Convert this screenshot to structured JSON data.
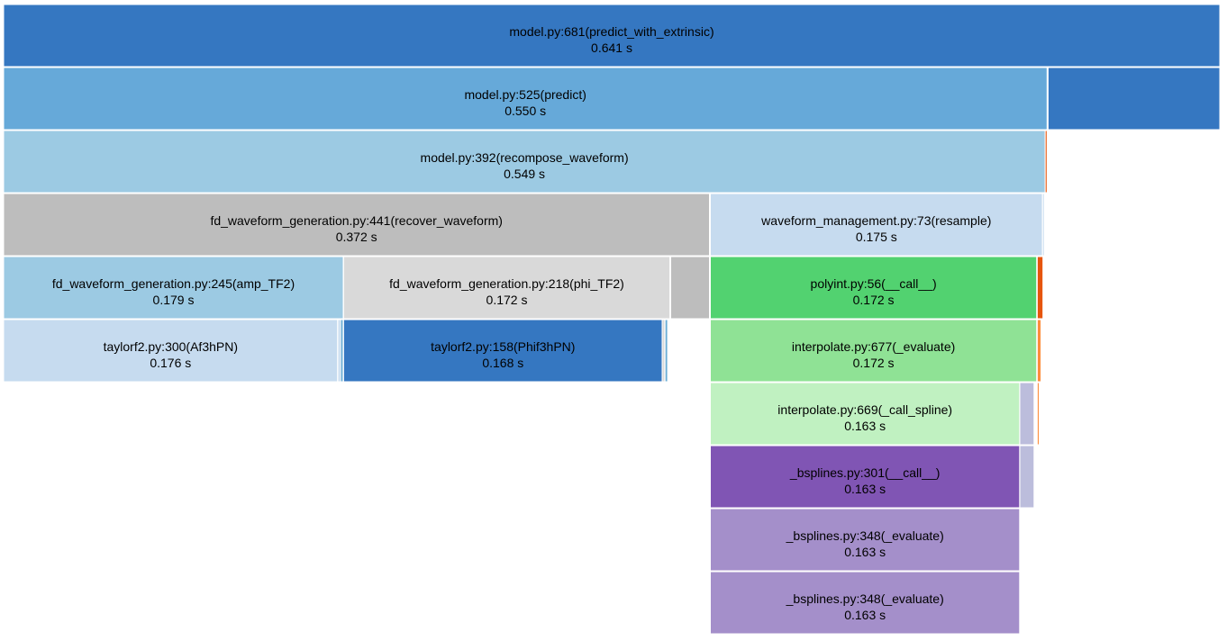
{
  "chart_data": {
    "type": "icicle",
    "time_unit": "s",
    "frames": [
      {
        "id": "predict_with_extrinsic",
        "label": "model.py:681(predict_with_extrinsic)",
        "time": "0.641 s",
        "seconds": 0.641,
        "depth": 0,
        "offset": 0.0,
        "color": "#3577c1"
      },
      {
        "id": "predict",
        "label": "model.py:525(predict)",
        "time": "0.550 s",
        "seconds": 0.55,
        "depth": 1,
        "offset": 0.0,
        "color": "#66a9d9"
      },
      {
        "id": "predict_sibling",
        "label": "",
        "time": "",
        "seconds": 0.0905,
        "depth": 1,
        "offset": 0.5505,
        "color": "#3577c1"
      },
      {
        "id": "recompose_waveform",
        "label": "model.py:392(recompose_waveform)",
        "time": "0.549 s",
        "seconds": 0.549,
        "depth": 2,
        "offset": 0.0,
        "color": "#9ccae3"
      },
      {
        "id": "recompose_sliver",
        "label": "",
        "time": "",
        "seconds": 0.001,
        "depth": 2,
        "offset": 0.549,
        "color": "#e6550d"
      },
      {
        "id": "recover_waveform",
        "label": "fd_waveform_generation.py:441(recover_waveform)",
        "time": "0.372 s",
        "seconds": 0.372,
        "depth": 3,
        "offset": 0.0,
        "color": "#bdbdbd"
      },
      {
        "id": "resample",
        "label": "waveform_management.py:73(resample)",
        "time": "0.175 s",
        "seconds": 0.175,
        "depth": 3,
        "offset": 0.3725,
        "color": "#c6dbef"
      },
      {
        "id": "resample_sliver",
        "label": "",
        "time": "",
        "seconds": 0.0009,
        "depth": 3,
        "offset": 0.5476,
        "color": "#c6dbef"
      },
      {
        "id": "amp_TF2",
        "label": "fd_waveform_generation.py:245(amp_TF2)",
        "time": "0.179 s",
        "seconds": 0.179,
        "depth": 4,
        "offset": 0.0,
        "color": "#9ccae3"
      },
      {
        "id": "phi_TF2",
        "label": "fd_waveform_generation.py:218(phi_TF2)",
        "time": "0.172 s",
        "seconds": 0.172,
        "depth": 4,
        "offset": 0.1792,
        "color": "#d9d9d9"
      },
      {
        "id": "recover_rest",
        "label": "",
        "time": "",
        "seconds": 0.0204,
        "depth": 4,
        "offset": 0.3516,
        "color": "#bdbdbd"
      },
      {
        "id": "polyint_call",
        "label": "polyint.py:56(__call__)",
        "time": "0.172 s",
        "seconds": 0.172,
        "depth": 4,
        "offset": 0.3725,
        "color": "#52d270"
      },
      {
        "id": "polyint_sliver",
        "label": "",
        "time": "",
        "seconds": 0.003,
        "depth": 4,
        "offset": 0.5448,
        "color": "#e6550d"
      },
      {
        "id": "Af3hPN",
        "label": "taylorf2.py:300(Af3hPN)",
        "time": "0.176 s",
        "seconds": 0.176,
        "depth": 5,
        "offset": 0.0,
        "color": "#c6dbef"
      },
      {
        "id": "amp_sliver_a",
        "label": "",
        "time": "",
        "seconds": 0.0014,
        "depth": 5,
        "offset": 0.1762,
        "color": "#c6dbef"
      },
      {
        "id": "amp_sliver_b",
        "label": "",
        "time": "",
        "seconds": 0.0014,
        "depth": 5,
        "offset": 0.1776,
        "color": "#6baed6"
      },
      {
        "id": "Phif3hPN",
        "label": "taylorf2.py:158(Phif3hPN)",
        "time": "0.168 s",
        "seconds": 0.168,
        "depth": 5,
        "offset": 0.1792,
        "color": "#3577c1"
      },
      {
        "id": "phi_sliver_a",
        "label": "",
        "time": "",
        "seconds": 0.0014,
        "depth": 5,
        "offset": 0.3471,
        "color": "#d9d9d9"
      },
      {
        "id": "phi_sliver_b",
        "label": "",
        "time": "",
        "seconds": 0.0014,
        "depth": 5,
        "offset": 0.3486,
        "color": "#6baed6"
      },
      {
        "id": "interpolate_evaluate",
        "label": "interpolate.py:677(_evaluate)",
        "time": "0.172 s",
        "seconds": 0.172,
        "depth": 5,
        "offset": 0.3725,
        "color": "#8fe295"
      },
      {
        "id": "interp_sliver",
        "label": "",
        "time": "",
        "seconds": 0.002,
        "depth": 5,
        "offset": 0.5448,
        "color": "#fd8d3c"
      },
      {
        "id": "call_spline",
        "label": "interpolate.py:669(_call_spline)",
        "time": "0.163 s",
        "seconds": 0.163,
        "depth": 6,
        "offset": 0.3725,
        "color": "#c0f1c1"
      },
      {
        "id": "spline_sliver_a",
        "label": "",
        "time": "",
        "seconds": 0.0075,
        "depth": 6,
        "offset": 0.5356,
        "color": "#bcbddc"
      },
      {
        "id": "spline_sliver_b",
        "label": "",
        "time": "",
        "seconds": 0.001,
        "depth": 6,
        "offset": 0.5448,
        "color": "#fd8d3c"
      },
      {
        "id": "bsplines_call",
        "label": "_bsplines.py:301(__call__)",
        "time": "0.163 s",
        "seconds": 0.163,
        "depth": 7,
        "offset": 0.3725,
        "color": "#8055b4"
      },
      {
        "id": "bsplines_sliver",
        "label": "",
        "time": "",
        "seconds": 0.0075,
        "depth": 7,
        "offset": 0.5356,
        "color": "#bcbddc"
      },
      {
        "id": "bsplines_evaluate_1",
        "label": "_bsplines.py:348(_evaluate)",
        "time": "0.163 s",
        "seconds": 0.163,
        "depth": 8,
        "offset": 0.3725,
        "color": "#a48fca"
      },
      {
        "id": "bsplines_evaluate_2",
        "label": "_bsplines.py:348(_evaluate)",
        "time": "0.163 s",
        "seconds": 0.163,
        "depth": 9,
        "offset": 0.3725,
        "color": "#a48fca"
      }
    ]
  }
}
